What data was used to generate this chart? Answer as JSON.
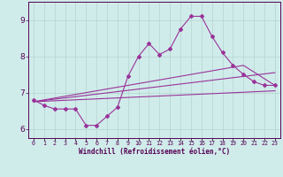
{
  "xlabel": "Windchill (Refroidissement éolien,°C)",
  "background_color": "#d0ecea",
  "line_color": "#993399",
  "grid_color": "#b8d8d4",
  "x_values": [
    0,
    1,
    2,
    3,
    4,
    5,
    6,
    7,
    8,
    9,
    10,
    11,
    12,
    13,
    14,
    15,
    16,
    17,
    18,
    19,
    20,
    21,
    22,
    23
  ],
  "series1": [
    6.8,
    6.65,
    6.55,
    6.55,
    6.55,
    6.1,
    6.1,
    6.35,
    6.6,
    7.45,
    8.0,
    8.35,
    8.05,
    8.2,
    8.75,
    9.1,
    9.1,
    8.55,
    8.1,
    7.75,
    7.5,
    7.3,
    7.2,
    7.2
  ],
  "trend1_x": [
    0,
    23
  ],
  "trend1_y": [
    6.75,
    7.05
  ],
  "trend2_x": [
    0,
    23
  ],
  "trend2_y": [
    6.75,
    7.55
  ],
  "trend3_x": [
    0,
    20,
    23
  ],
  "trend3_y": [
    6.75,
    7.75,
    7.2
  ],
  "ylim": [
    5.75,
    9.5
  ],
  "yticks": [
    6,
    7,
    8,
    9
  ],
  "xlim": [
    -0.5,
    23.5
  ]
}
